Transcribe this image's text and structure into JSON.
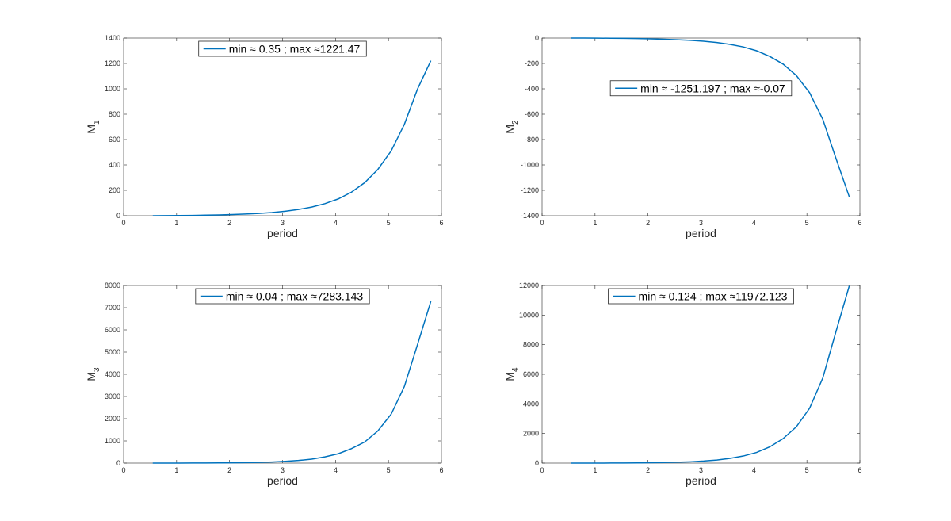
{
  "chart_data": [
    {
      "type": "line",
      "xlabel": "period",
      "ylabel": "M",
      "ylabel_subscript": "1",
      "x": [
        0.55,
        0.8,
        1.05,
        1.3,
        1.55,
        1.8,
        2.05,
        2.3,
        2.55,
        2.8,
        3.05,
        3.3,
        3.55,
        3.8,
        4.05,
        4.3,
        4.55,
        4.8,
        5.05,
        5.3,
        5.55,
        5.8
      ],
      "series": [
        {
          "name": "min ≈ 0.35 ; max ≈1221.47",
          "color": "#0072bd",
          "values": [
            0.35,
            0.8,
            1.4,
            2.5,
            4.5,
            6.5,
            9,
            13,
            18,
            25,
            35,
            49,
            68,
            95,
            132,
            185,
            260,
            365,
            510,
            720,
            1000,
            1221.47
          ]
        }
      ],
      "xlim": [
        0,
        6
      ],
      "xticks": [
        0,
        1,
        2,
        3,
        4,
        5,
        6
      ],
      "ylim": [
        0,
        1400
      ],
      "yticks": [
        0,
        200,
        400,
        600,
        800,
        1000,
        1200,
        1400
      ],
      "legend": "north"
    },
    {
      "type": "line",
      "xlabel": "period",
      "ylabel": "M",
      "ylabel_subscript": "2",
      "x": [
        0.55,
        0.8,
        1.05,
        1.3,
        1.55,
        1.8,
        2.05,
        2.3,
        2.55,
        2.8,
        3.05,
        3.3,
        3.55,
        3.8,
        4.05,
        4.3,
        4.55,
        4.8,
        5.05,
        5.3,
        5.55,
        5.8
      ],
      "series": [
        {
          "name": "min ≈ -1251.197 ; max ≈-0.07",
          "color": "#0072bd",
          "values": [
            -0.07,
            -0.3,
            -0.8,
            -1.5,
            -2.5,
            -4,
            -6,
            -9,
            -13,
            -18,
            -25,
            -35,
            -50,
            -70,
            -100,
            -145,
            -205,
            -295,
            -430,
            -640,
            -950,
            -1251.197
          ]
        }
      ],
      "xlim": [
        0,
        6
      ],
      "xticks": [
        0,
        1,
        2,
        3,
        4,
        5,
        6
      ],
      "ylim": [
        -1400,
        0
      ],
      "yticks": [
        -1400,
        -1200,
        -1000,
        -800,
        -600,
        -400,
        -200,
        0
      ],
      "legend": "best"
    },
    {
      "type": "line",
      "xlabel": "period",
      "ylabel": "M",
      "ylabel_subscript": "3",
      "x": [
        0.55,
        0.8,
        1.05,
        1.3,
        1.55,
        1.8,
        2.05,
        2.3,
        2.55,
        2.8,
        3.05,
        3.3,
        3.55,
        3.8,
        4.05,
        4.3,
        4.55,
        4.8,
        5.05,
        5.3,
        5.55,
        5.8
      ],
      "series": [
        {
          "name": "min ≈ 0.04 ; max ≈7283.143",
          "color": "#0072bd",
          "values": [
            0.04,
            0.4,
            1.2,
            2.5,
            5,
            9,
            14,
            22,
            33,
            50,
            80,
            120,
            180,
            280,
            420,
            650,
            950,
            1450,
            2200,
            3450,
            5350,
            7283.143
          ]
        }
      ],
      "xlim": [
        0,
        6
      ],
      "xticks": [
        0,
        1,
        2,
        3,
        4,
        5,
        6
      ],
      "ylim": [
        0,
        8000
      ],
      "yticks": [
        0,
        1000,
        2000,
        3000,
        4000,
        5000,
        6000,
        7000,
        8000
      ],
      "legend": "north"
    },
    {
      "type": "line",
      "xlabel": "period",
      "ylabel": "M",
      "ylabel_subscript": "4",
      "x": [
        0.55,
        0.8,
        1.05,
        1.3,
        1.55,
        1.8,
        2.05,
        2.3,
        2.55,
        2.8,
        3.05,
        3.3,
        3.55,
        3.8,
        4.05,
        4.3,
        4.55,
        4.8,
        5.05,
        5.3,
        5.55,
        5.8
      ],
      "series": [
        {
          "name": "min ≈ 0.124 ; max ≈11972.123",
          "color": "#0072bd",
          "values": [
            0.124,
            0.8,
            2,
            4,
            8,
            15,
            25,
            40,
            60,
            90,
            140,
            210,
            320,
            480,
            720,
            1100,
            1650,
            2450,
            3700,
            5750,
            8900,
            11972.123
          ]
        }
      ],
      "xlim": [
        0,
        6
      ],
      "xticks": [
        0,
        1,
        2,
        3,
        4,
        5,
        6
      ],
      "ylim": [
        0,
        12000
      ],
      "yticks": [
        0,
        2000,
        4000,
        6000,
        8000,
        10000,
        12000
      ],
      "legend": "north"
    }
  ]
}
